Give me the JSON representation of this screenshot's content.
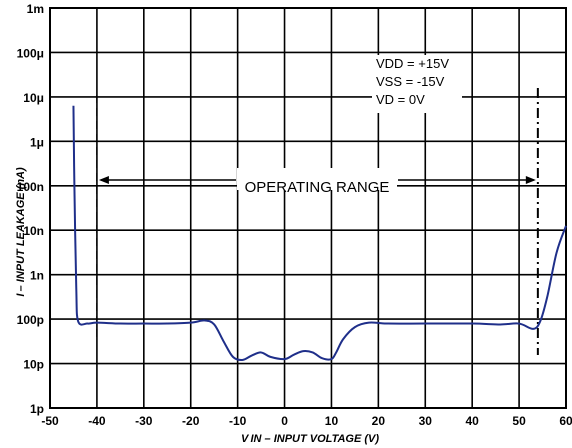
{
  "chart_data": {
    "type": "line",
    "xlabel": "VIN – INPUT VOLTAGE (V)",
    "ylabel": "I – INPUT LEAKAGE (nA)",
    "x_ticks": [
      -50,
      -40,
      -30,
      -20,
      -10,
      0,
      10,
      20,
      30,
      40,
      50,
      60
    ],
    "x_tick_labels": [
      "-50",
      "-40",
      "-30",
      "-20",
      "-10",
      "0",
      "10",
      "20",
      "30",
      "40",
      "50",
      "60"
    ],
    "y_ticks": [
      "1m",
      "100μ",
      "10μ",
      "1μ",
      "100n",
      "10n",
      "1n",
      "100p",
      "10p",
      "1p"
    ],
    "xlim": [
      -50,
      60
    ],
    "ylim_decades": [
      -12,
      -3
    ],
    "y_scale": "log",
    "grid": true,
    "conditions": [
      "VDD = +15V",
      "VSS = -15V",
      "VD = 0V"
    ],
    "annotation": "OPERATING RANGE",
    "operating_range_markers": [
      -40,
      54
    ],
    "series": [
      {
        "color": "#1f2f8a",
        "points": [
          [
            -45,
            -5.2
          ],
          [
            -44.8,
            -7.0
          ],
          [
            -44.4,
            -9.3
          ],
          [
            -44,
            -10.05
          ],
          [
            -42,
            -10.1
          ],
          [
            -40,
            -10.08
          ],
          [
            -35,
            -10.1
          ],
          [
            -30,
            -10.1
          ],
          [
            -25,
            -10.1
          ],
          [
            -20,
            -10.08
          ],
          [
            -17,
            -10.03
          ],
          [
            -15,
            -10.12
          ],
          [
            -13,
            -10.5
          ],
          [
            -11,
            -10.85
          ],
          [
            -9,
            -10.92
          ],
          [
            -7,
            -10.82
          ],
          [
            -5,
            -10.75
          ],
          [
            -3,
            -10.85
          ],
          [
            0,
            -10.9
          ],
          [
            2,
            -10.8
          ],
          [
            4,
            -10.72
          ],
          [
            6,
            -10.75
          ],
          [
            8,
            -10.88
          ],
          [
            10,
            -10.9
          ],
          [
            11,
            -10.75
          ],
          [
            12.5,
            -10.45
          ],
          [
            15,
            -10.18
          ],
          [
            18,
            -10.08
          ],
          [
            22,
            -10.1
          ],
          [
            30,
            -10.1
          ],
          [
            40,
            -10.1
          ],
          [
            46,
            -10.12
          ],
          [
            50,
            -10.1
          ],
          [
            53,
            -10.22
          ],
          [
            54.5,
            -10.05
          ],
          [
            56,
            -9.5
          ],
          [
            58,
            -8.5
          ],
          [
            60,
            -7.9
          ]
        ]
      }
    ]
  },
  "labels": {
    "x_axis_title": "V IN – INPUT VOLTAGE (V)",
    "y_axis_title": "I – INPUT LEAKAGE (nA)"
  }
}
